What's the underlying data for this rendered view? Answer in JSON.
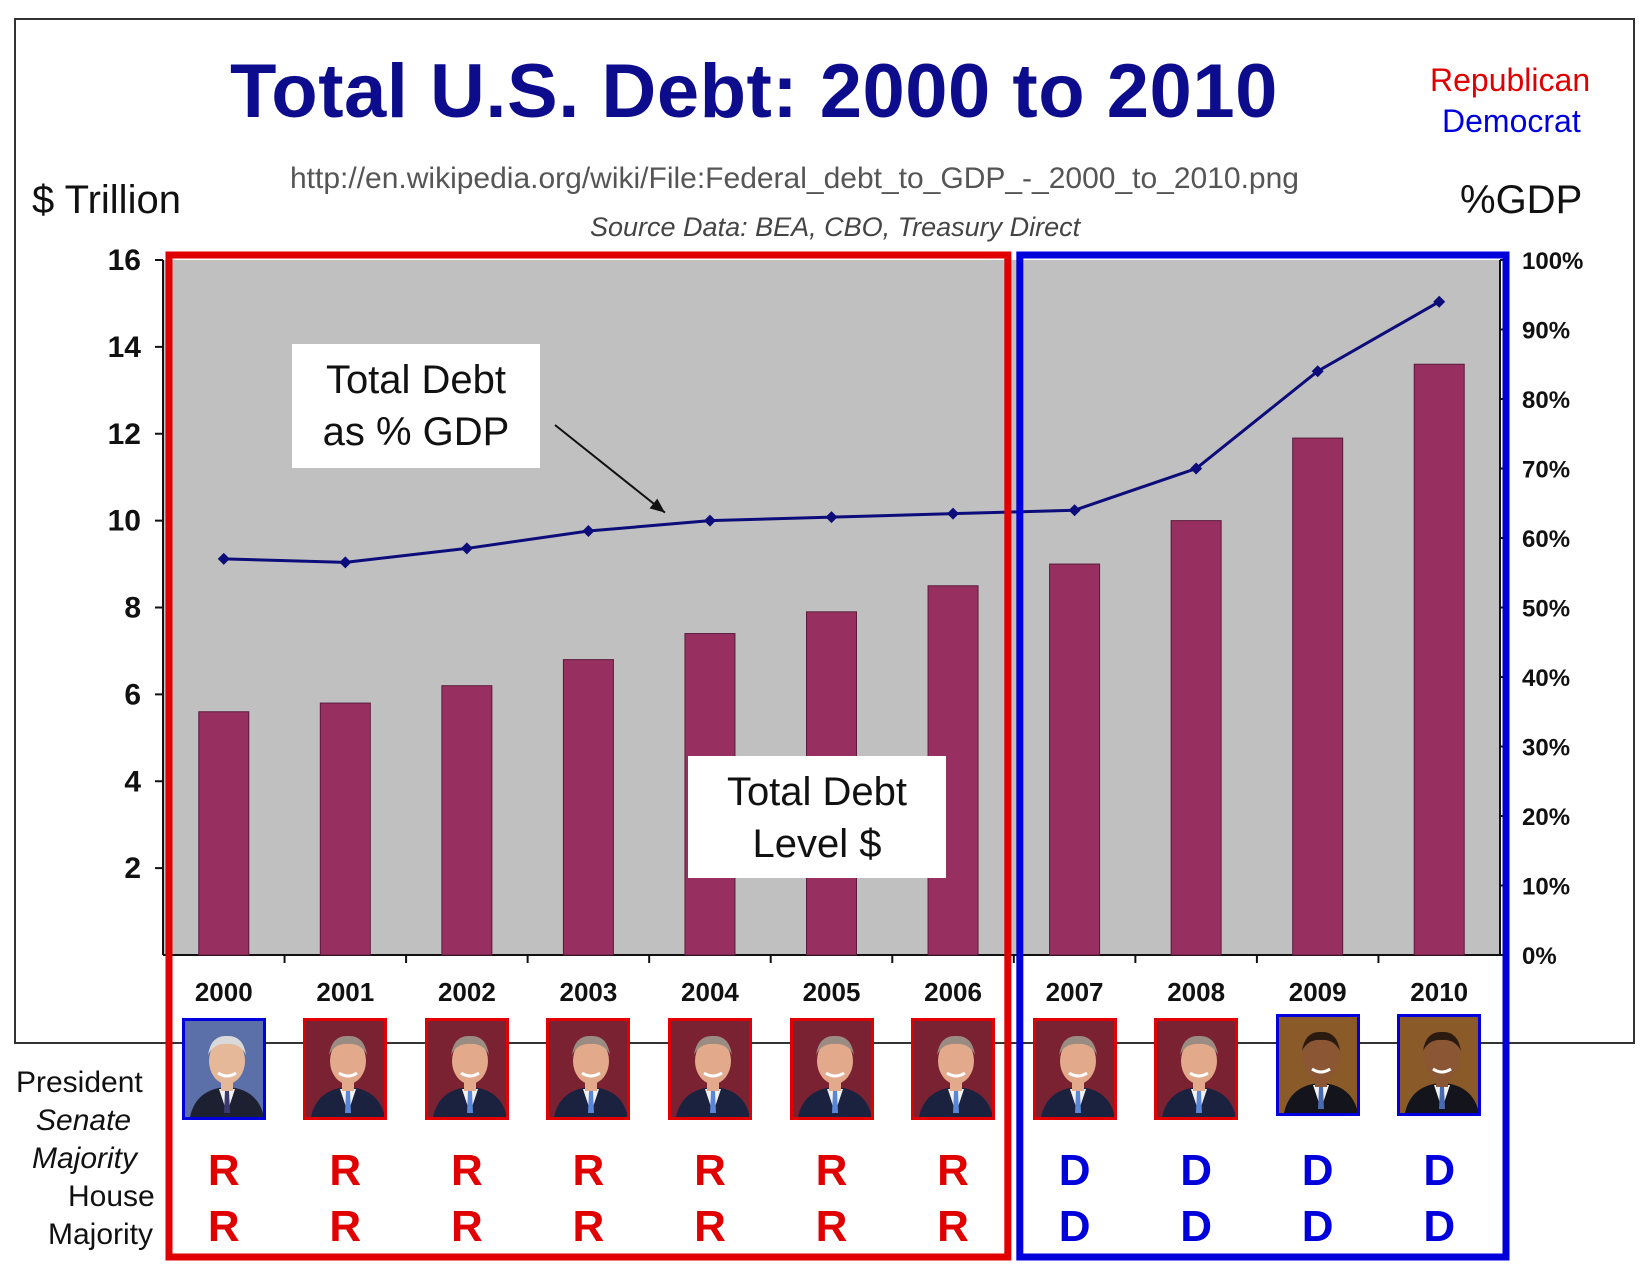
{
  "header": {
    "title": "Total U.S. Debt: 2000 to 2010",
    "legend_republican": "Republican",
    "legend_democrat": "Democrat",
    "source_url": "http://en.wikipedia.org/wiki/File:Federal_debt_to_GDP_-_2000_to_2010.png",
    "source_note": "Source Data: BEA, CBO, Treasury Direct"
  },
  "colors": {
    "title": "#0c0c8c",
    "republican": "#e00000",
    "democrat": "#0000dd",
    "bar": "#973060",
    "line": "#0c0c7a",
    "plot_bg": "#c0c0c0"
  },
  "chart_data": {
    "type": "bar",
    "title": "Total U.S. Debt: 2000 to 2010",
    "ylabel": "$ Trillion",
    "y2label": "%GDP",
    "categories": [
      "2000",
      "2001",
      "2002",
      "2003",
      "2004",
      "2005",
      "2006",
      "2007",
      "2008",
      "2009",
      "2010"
    ],
    "ylim": [
      0,
      16
    ],
    "y2lim": [
      0,
      100
    ],
    "yticks": [
      "2",
      "4",
      "6",
      "8",
      "10",
      "12",
      "14",
      "16"
    ],
    "y2ticks": [
      "0%",
      "10%",
      "20%",
      "30%",
      "40%",
      "50%",
      "60%",
      "70%",
      "80%",
      "90%",
      "100%"
    ],
    "series": [
      {
        "name": "Total Debt Level $",
        "type": "bar",
        "axis": "left",
        "values": [
          5.6,
          5.8,
          6.2,
          6.8,
          7.4,
          7.9,
          8.5,
          9.0,
          10.0,
          11.9,
          13.6
        ]
      },
      {
        "name": "Total Debt as % GDP",
        "type": "line",
        "axis": "right",
        "values": [
          57,
          56.5,
          58.5,
          61,
          62.5,
          63,
          63.5,
          64,
          70,
          84,
          94
        ]
      }
    ],
    "annotations": {
      "pct_callout": [
        "Total Debt",
        "as % GDP"
      ],
      "level_callout": [
        "Total Debt",
        "Level $"
      ]
    }
  },
  "governance": {
    "row_labels": {
      "president": "President",
      "senate_1": "Senate",
      "senate_2": "Majority",
      "house_1": "House",
      "house_2": "Majority"
    },
    "presidents": [
      "clinton",
      "bush",
      "bush",
      "bush",
      "bush",
      "bush",
      "bush",
      "bush",
      "bush",
      "obama",
      "obama"
    ],
    "senate": [
      "R",
      "R",
      "R",
      "R",
      "R",
      "R",
      "R",
      "D",
      "D",
      "D",
      "D"
    ],
    "house": [
      "R",
      "R",
      "R",
      "R",
      "R",
      "R",
      "R",
      "D",
      "D",
      "D",
      "D"
    ]
  }
}
